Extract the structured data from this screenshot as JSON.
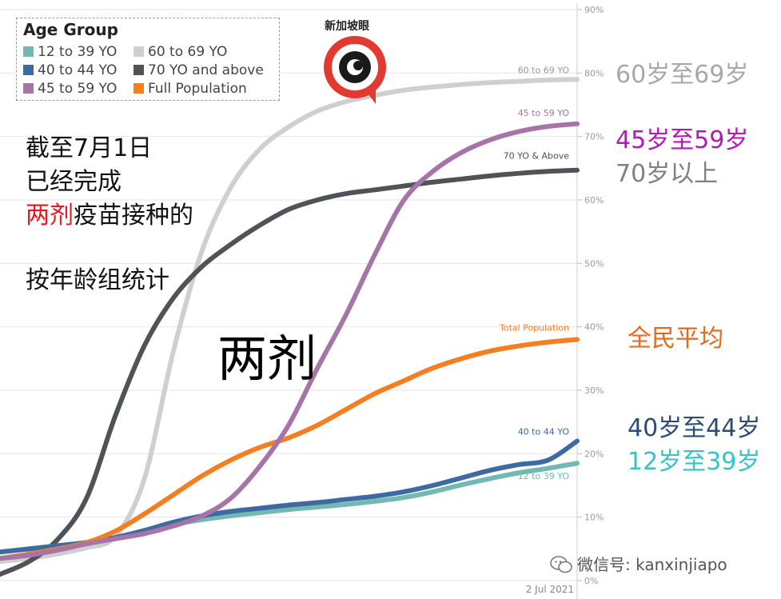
{
  "chart_data": {
    "type": "line",
    "title": "",
    "xlabel": "",
    "ylabel": "",
    "ylim": [
      0,
      90
    ],
    "yticks": [
      0,
      10,
      20,
      30,
      40,
      50,
      60,
      70,
      80,
      90
    ],
    "ytick_labels": [
      "0%",
      "10%",
      "20%",
      "30%",
      "40%",
      "50%",
      "60%",
      "70%",
      "80%",
      "90%"
    ],
    "y_axis_side": "right",
    "x_tick_label": "2 Jul 2021",
    "grid": true,
    "x": [
      0,
      5,
      10,
      15,
      20,
      25,
      30,
      35,
      40,
      45,
      50,
      55,
      60,
      65,
      70,
      75,
      80,
      85,
      90,
      95,
      100
    ],
    "series": [
      {
        "name": "12 to 39 YO",
        "color": "#73b8b2",
        "end_label": "12 to 39 YO",
        "values": [
          4.5,
          5.0,
          5.5,
          6.0,
          6.6,
          7.6,
          8.8,
          9.6,
          10.2,
          10.7,
          11.2,
          11.6,
          12.0,
          12.5,
          13.1,
          14.0,
          15.1,
          16.1,
          17.0,
          17.7,
          18.5
        ]
      },
      {
        "name": "40 to 44 YO",
        "color": "#3d6aa0",
        "end_label": "40 to 44 YO",
        "values": [
          4.5,
          5.0,
          5.5,
          6.0,
          6.8,
          7.9,
          9.2,
          10.2,
          10.9,
          11.4,
          11.9,
          12.3,
          12.8,
          13.3,
          14.0,
          15.0,
          16.2,
          17.4,
          18.3,
          19.0,
          22.0
        ]
      },
      {
        "name": "45 to 59 YO",
        "color": "#a774a8",
        "end_label": "45 to 59 YO",
        "values": [
          3.5,
          4.0,
          4.8,
          5.8,
          6.6,
          7.4,
          8.6,
          10.2,
          13.0,
          18.0,
          24.5,
          33.5,
          42.0,
          51.5,
          60.0,
          64.5,
          67.5,
          69.5,
          70.8,
          71.6,
          72.0
        ]
      },
      {
        "name": "60 to 69 YO",
        "color": "#cfcfcf",
        "end_label": "60 to 69 YO",
        "values": [
          3.0,
          3.5,
          4.2,
          5.2,
          7.0,
          16.0,
          36.0,
          52.0,
          62.0,
          68.0,
          71.5,
          74.0,
          75.5,
          76.5,
          77.3,
          77.8,
          78.2,
          78.5,
          78.7,
          78.9,
          79.0
        ]
      },
      {
        "name": "70 YO and above",
        "color": "#4f5257",
        "end_label": "70 YO & Above",
        "values": [
          1.0,
          3.0,
          6.5,
          13.0,
          26.0,
          37.0,
          44.5,
          49.5,
          53.0,
          56.0,
          58.5,
          60.0,
          61.0,
          61.6,
          62.2,
          62.8,
          63.3,
          63.8,
          64.2,
          64.5,
          64.7
        ]
      },
      {
        "name": "Full Population",
        "color": "#f57f20",
        "end_label": "Total Population",
        "values": [
          3.5,
          4.2,
          5.0,
          6.0,
          7.8,
          10.5,
          13.5,
          16.5,
          19.0,
          21.0,
          22.5,
          24.5,
          27.0,
          29.5,
          31.5,
          33.5,
          35.0,
          36.2,
          37.0,
          37.6,
          38.0
        ]
      }
    ]
  },
  "legend": {
    "title": "Age Group",
    "items": [
      {
        "label": "12 to 39 YO",
        "color": "#73b8b2"
      },
      {
        "label": "40 to 44 YO",
        "color": "#3d6aa0"
      },
      {
        "label": "45 to 59 YO",
        "color": "#a774a8"
      },
      {
        "label": "60 to 69 YO",
        "color": "#cfcfcf"
      },
      {
        "label": "70 YO and above",
        "color": "#4f5257"
      },
      {
        "label": "Full Population",
        "color": "#f57f20"
      }
    ]
  },
  "logo": {
    "text": "新加坡眼",
    "icon": "eye-logo-icon"
  },
  "annotations": {
    "line1": "截至7月1日",
    "line2": "已经完成",
    "line3_red": "两剂",
    "line3_rest": "疫苗接种的",
    "line4": "按年龄组统计",
    "big": "两剂",
    "r_60_69": "60岁至69岁",
    "r_45_59": "45岁至59岁",
    "r_70": "70岁以上",
    "r_full": "全民平均",
    "r_40_44": "40岁至44岁",
    "r_12_39": "12岁至39岁"
  },
  "watermark": {
    "text": "微信号: kanxinjiapo",
    "icon": "wechat-icon"
  }
}
